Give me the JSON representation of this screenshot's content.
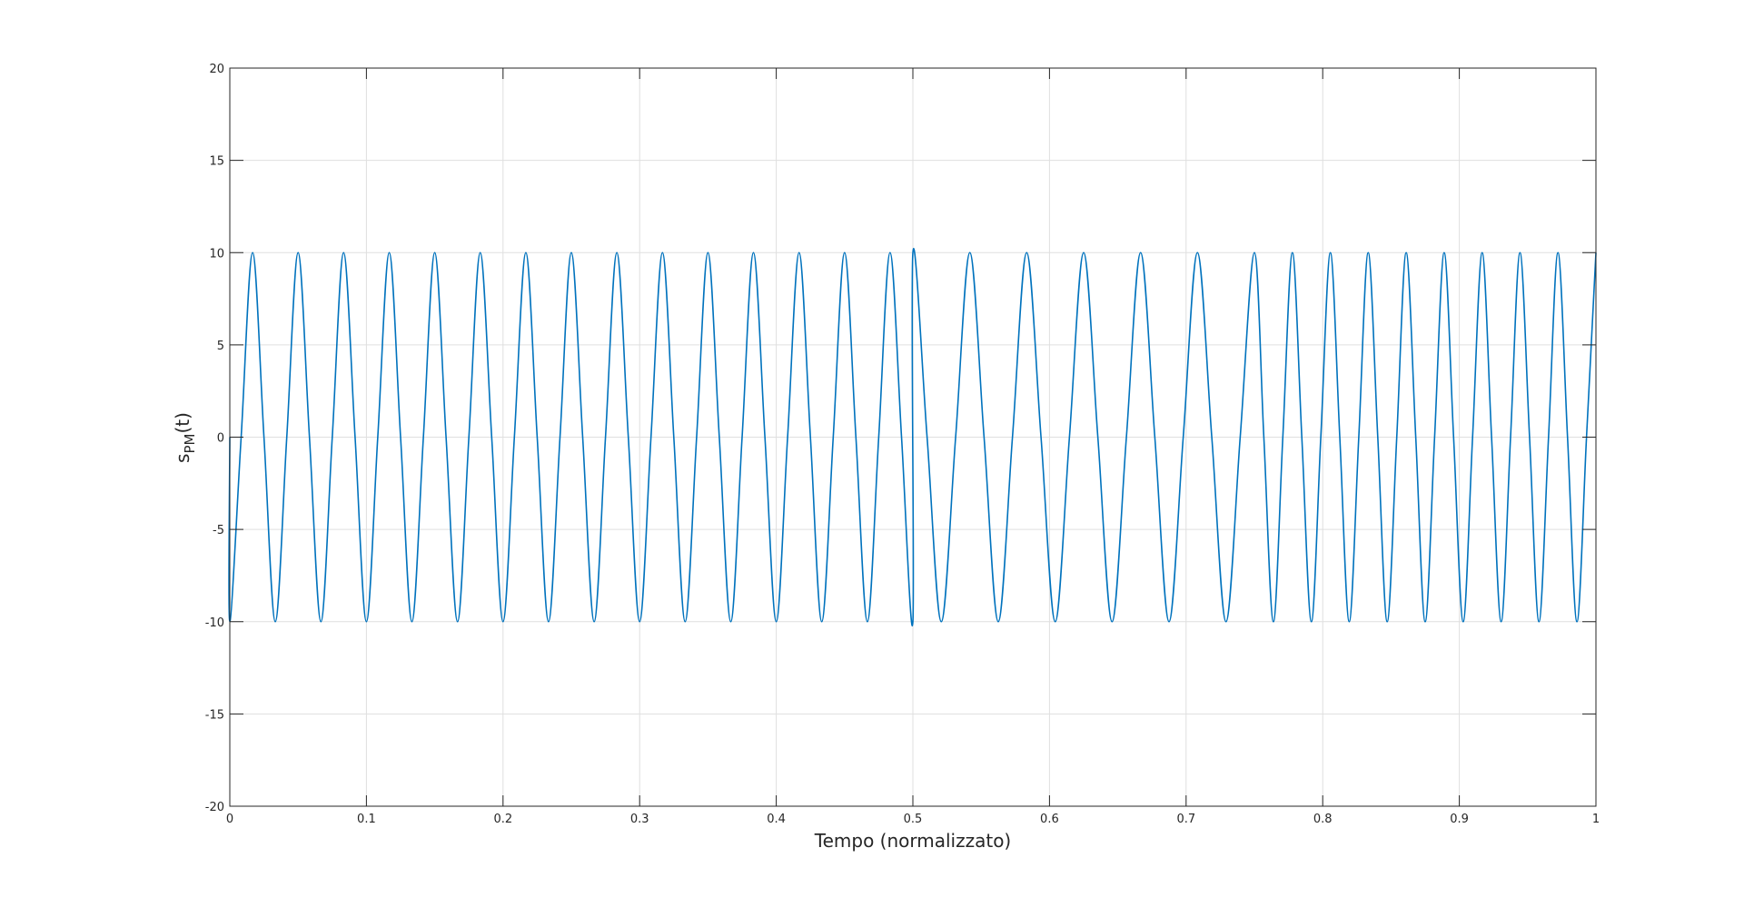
{
  "chart_data": {
    "type": "line",
    "xlabel": "Tempo (normalizzato)",
    "ylabel": [
      "s",
      "PM",
      "(t)"
    ],
    "xlim": [
      0,
      1
    ],
    "xticks": [
      0,
      0.1,
      0.2,
      0.3,
      0.4,
      0.5,
      0.6,
      0.7,
      0.8,
      0.9,
      1
    ],
    "ylim": [
      -20,
      20
    ],
    "yticks": [
      -20,
      -15,
      -10,
      -5,
      0,
      5,
      10,
      15,
      20
    ],
    "grid": true,
    "series": [
      {
        "color": "#0072bd",
        "x": [
          0,
          0,
          0.0083,
          0.0167,
          0.025,
          0.0333,
          0.0417,
          0.05,
          0.0583,
          0.0667,
          0.075,
          0.0833,
          0.0917,
          0.1,
          0.1083,
          0.1167,
          0.125,
          0.1333,
          0.1417,
          0.15,
          0.1583,
          0.1667,
          0.175,
          0.1833,
          0.1917,
          0.2,
          0.2083,
          0.2167,
          0.225,
          0.2333,
          0.2417,
          0.25,
          0.2583,
          0.2667,
          0.275,
          0.2833,
          0.2917,
          0.3,
          0.3083,
          0.3167,
          0.325,
          0.3333,
          0.3417,
          0.35,
          0.3583,
          0.3667,
          0.375,
          0.3833,
          0.3917,
          0.4,
          0.4083,
          0.4167,
          0.425,
          0.4333,
          0.4417,
          0.45,
          0.4583,
          0.4667,
          0.475,
          0.4833,
          0.4917,
          0.5,
          0.5,
          0.5104,
          0.5208,
          0.5313,
          0.5417,
          0.5521,
          0.5625,
          0.5729,
          0.5833,
          0.5938,
          0.6042,
          0.6146,
          0.625,
          0.6354,
          0.6458,
          0.6563,
          0.6667,
          0.6771,
          0.6875,
          0.6979,
          0.7083,
          0.7188,
          0.7292,
          0.7396,
          0.75,
          0.7569,
          0.7639,
          0.7708,
          0.7778,
          0.7847,
          0.7917,
          0.7986,
          0.8056,
          0.8125,
          0.8194,
          0.8264,
          0.8333,
          0.8403,
          0.8472,
          0.8542,
          0.8611,
          0.8681,
          0.875,
          0.8819,
          0.8889,
          0.8958,
          0.9028,
          0.9097,
          0.9167,
          0.9236,
          0.9306,
          0.9375,
          0.9444,
          0.9514,
          0.9583,
          0.9653,
          0.9722,
          0.9792,
          0.9861,
          0.9931,
          1
        ],
        "values": [
          0,
          -10,
          0,
          10,
          0,
          -10,
          0,
          10,
          0,
          -10,
          0,
          10,
          0,
          -10,
          0,
          10,
          0,
          -10,
          0,
          10,
          0,
          -10,
          0,
          10,
          0,
          -10,
          0,
          10,
          0,
          -10,
          0,
          10,
          0,
          -10,
          0,
          10,
          0,
          -10,
          0,
          10,
          0,
          -10,
          0,
          10,
          0,
          -10,
          0,
          10,
          0,
          -10,
          0,
          10,
          0,
          -10,
          0,
          10,
          0,
          -10,
          0,
          10,
          0,
          -10,
          10,
          0,
          -10,
          0,
          10,
          0,
          -10,
          0,
          10,
          0,
          -10,
          0,
          10,
          0,
          -10,
          0,
          10,
          0,
          -10,
          0,
          10,
          0,
          -10,
          0,
          10,
          0,
          -10,
          0,
          10,
          0,
          -10,
          0,
          10,
          0,
          -10,
          0,
          10,
          0,
          -10,
          0,
          10,
          0,
          -10,
          0,
          10,
          0,
          -10,
          0,
          10,
          0,
          -10,
          0,
          10,
          0,
          -10,
          0,
          10,
          0,
          -10,
          0,
          10
        ]
      }
    ]
  }
}
